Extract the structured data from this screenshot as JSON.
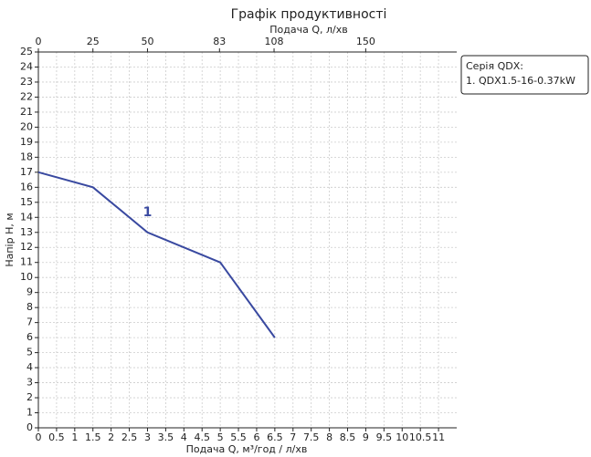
{
  "chart_data": {
    "type": "line",
    "title": "Графік продуктивності",
    "x2_label": "Подача Q, л/хв",
    "x_label": "Подача Q, м³/год / л/хв",
    "y_label": "Напір H, м",
    "legend_title": "Серія QDX:",
    "legend_position": "upper right outside",
    "annotations": [
      {
        "text": "1"
      }
    ],
    "x": [
      0,
      1.5,
      3,
      5,
      6.5
    ],
    "series": [
      {
        "name": "1. QDX1.5-16-0.37kW",
        "color": "#3949a0",
        "values": [
          17,
          16,
          13,
          11,
          6
        ]
      }
    ],
    "xlim": [
      0,
      11.5
    ],
    "xticks": [
      0,
      0.5,
      1,
      1.5,
      2,
      2.5,
      3,
      3.5,
      4,
      4.5,
      5,
      5.5,
      6,
      6.5,
      7,
      7.5,
      8,
      8.5,
      9,
      9.5,
      10,
      10.5,
      11
    ],
    "x2lim": [
      0,
      191.7
    ],
    "x2ticks": [
      0,
      25,
      50,
      83,
      108,
      150
    ],
    "ylim": [
      0,
      25
    ],
    "yticks": [
      0,
      1,
      2,
      3,
      4,
      5,
      6,
      7,
      8,
      9,
      10,
      11,
      12,
      13,
      14,
      15,
      16,
      17,
      18,
      19,
      20,
      21,
      22,
      23,
      24,
      25
    ],
    "grid": true
  }
}
